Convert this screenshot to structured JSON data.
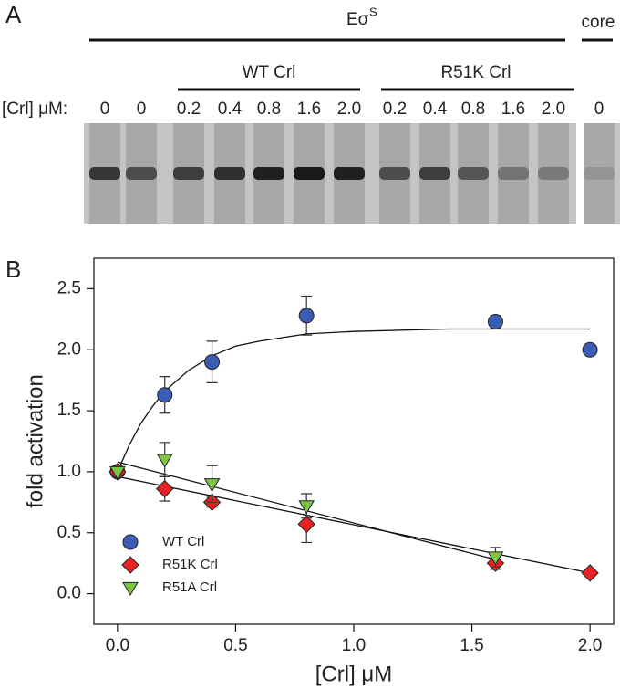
{
  "gel": {
    "panel_label": "A",
    "enzyme_label": "Eσ",
    "enzyme_superscript": "S",
    "core_label": "core",
    "group_labels": [
      "WT Crl",
      "R51K Crl"
    ],
    "row_label": "[Crl] μM:",
    "lanes": [
      "0",
      "0",
      "0.2",
      "0.4",
      "0.8",
      "1.6",
      "2.0",
      "0.2",
      "0.4",
      "0.8",
      "1.6",
      "2.0",
      "0"
    ]
  },
  "chart_data": {
    "type": "scatter",
    "panel_label": "B",
    "x_label": "[Crl] μM",
    "y_label": "fold activation",
    "xlim": [
      -0.1,
      2.1
    ],
    "ylim": [
      -0.25,
      2.75
    ],
    "xticks": [
      {
        "value": 0,
        "label": "0.0"
      },
      0.5,
      {
        "value": 1,
        "label": "1.0"
      },
      1.5,
      {
        "value": 2,
        "label": "2.0"
      }
    ],
    "yticks": [
      {
        "value": 0,
        "label": "0.0"
      },
      0.5,
      {
        "value": 1,
        "label": "1.0"
      },
      1.5,
      {
        "value": 2,
        "label": "2.0"
      },
      2.5
    ],
    "legend": "lower left",
    "x": [
      0,
      0.2,
      0.4,
      0.8,
      1.6,
      2.0
    ],
    "series": [
      {
        "name": "WT Crl",
        "color": "#3b5cb5",
        "marker": "circle",
        "values": [
          1.0,
          1.63,
          1.9,
          2.28,
          2.23,
          2.0
        ],
        "errors": [
          null,
          0.15,
          0.17,
          0.16,
          0.05,
          null
        ]
      },
      {
        "name": "R51K Crl",
        "color": "#e82222",
        "marker": "diamond",
        "values": [
          1.0,
          0.86,
          0.75,
          0.57,
          0.25,
          0.17
        ],
        "errors": [
          null,
          0.1,
          0.04,
          0.15,
          0.05,
          null
        ]
      },
      {
        "name": "R51A Crl",
        "color": "#7cc644",
        "marker": "triangle-down",
        "values": [
          1.0,
          1.1,
          0.9,
          0.72,
          0.3,
          null
        ],
        "errors": [
          null,
          0.14,
          0.15,
          0.1,
          0.08,
          null
        ]
      }
    ],
    "fits": [
      {
        "x": [
          0,
          0.05,
          0.1,
          0.15,
          0.2,
          0.3,
          0.4,
          0.5,
          0.6,
          0.8,
          1.0,
          1.4,
          2.0
        ],
        "values": [
          1.0,
          1.22,
          1.4,
          1.54,
          1.66,
          1.83,
          1.95,
          2.03,
          2.07,
          2.13,
          2.15,
          2.17,
          2.17
        ]
      },
      {
        "x": [
          0,
          2.0
        ],
        "values": [
          0.96,
          0.17
        ]
      },
      {
        "x": [
          0,
          1.6
        ],
        "values": [
          1.08,
          0.28
        ]
      }
    ]
  }
}
